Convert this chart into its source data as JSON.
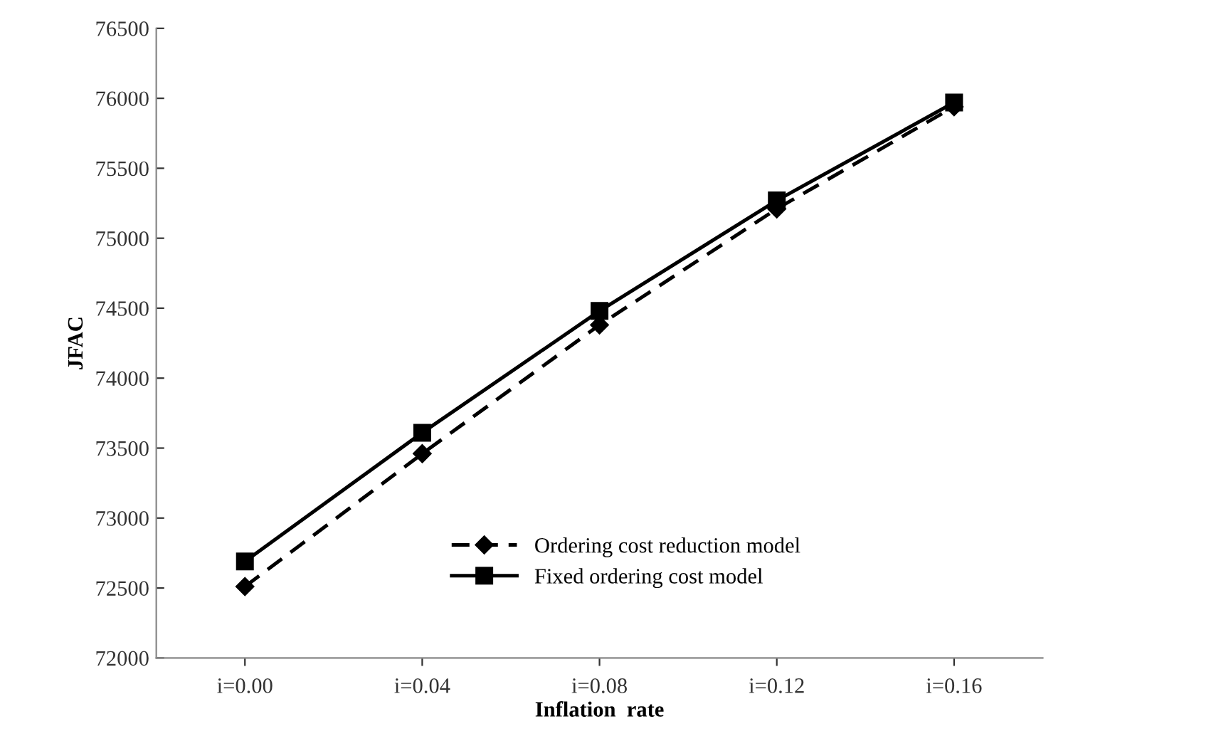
{
  "chart_data": {
    "type": "line",
    "xlabel": "Inflation  rate",
    "ylabel": "JFAC",
    "categories": [
      "i=0.00",
      "i=0.04",
      "i=0.08",
      "i=0.12",
      "i=0.16"
    ],
    "series": [
      {
        "name": "Ordering cost reduction model",
        "color": "#000000",
        "values": [
          72510,
          73460,
          74380,
          75210,
          75940
        ],
        "marker": "diamond",
        "line_style": "dashed"
      },
      {
        "name": "Fixed ordering cost model",
        "color": "#000000",
        "values": [
          72690,
          73610,
          74480,
          75270,
          75970
        ],
        "marker": "square",
        "line_style": "solid"
      }
    ],
    "ylim": [
      72000,
      76500
    ],
    "yticks": [
      72000,
      72500,
      73000,
      73500,
      74000,
      74500,
      75000,
      75500,
      76000,
      76500
    ],
    "grid": false,
    "legend": "bottom"
  }
}
